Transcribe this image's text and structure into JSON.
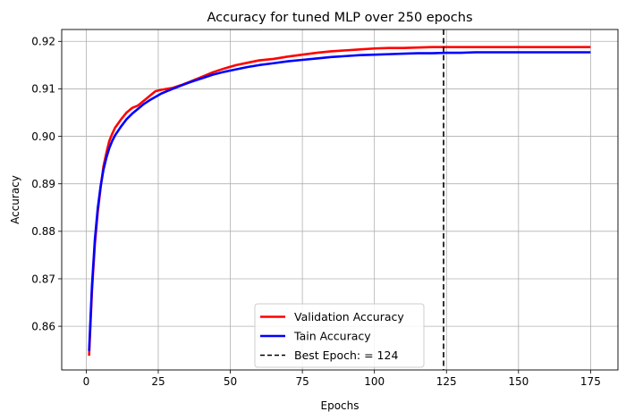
{
  "chart_data": {
    "type": "line",
    "title": "Accuracy for tuned MLP over 250 epochs",
    "xlabel": "Epochs",
    "ylabel": "Accuracy",
    "xlim": [
      -8.5,
      184.5
    ],
    "ylim": [
      0.8508,
      0.9225
    ],
    "xticks": [
      0,
      25,
      50,
      75,
      100,
      125,
      150,
      175
    ],
    "yticks": [
      0.86,
      0.87,
      0.88,
      0.89,
      0.9,
      0.91,
      0.92
    ],
    "ytick_labels": [
      "0.86",
      "0.87",
      "0.88",
      "0.89",
      "0.90",
      "0.91",
      "0.92"
    ],
    "grid": true,
    "legend_position": "lower-center",
    "series": [
      {
        "name": "Validation Accuracy",
        "color": "#ff0000",
        "x": [
          1,
          2,
          3,
          4,
          5,
          6,
          7,
          8,
          9,
          10,
          12,
          14,
          16,
          18,
          20,
          22,
          24,
          26,
          28,
          30,
          33,
          36,
          40,
          44,
          48,
          52,
          56,
          60,
          65,
          70,
          75,
          80,
          85,
          90,
          95,
          100,
          105,
          110,
          115,
          120,
          124,
          130,
          135,
          140,
          150,
          160,
          170,
          175
        ],
        "y": [
          0.8538,
          0.8675,
          0.8772,
          0.884,
          0.8892,
          0.8937,
          0.8965,
          0.899,
          0.9005,
          0.9018,
          0.9035,
          0.905,
          0.906,
          0.9065,
          0.9075,
          0.9085,
          0.9095,
          0.9098,
          0.91,
          0.9102,
          0.9108,
          0.9115,
          0.9125,
          0.9135,
          0.9143,
          0.915,
          0.9155,
          0.916,
          0.9163,
          0.9168,
          0.9172,
          0.9176,
          0.9179,
          0.9181,
          0.9183,
          0.9185,
          0.9186,
          0.9186,
          0.9187,
          0.9188,
          0.9188,
          0.9188,
          0.9188,
          0.9188,
          0.9188,
          0.9188,
          0.9188,
          0.9188
        ]
      },
      {
        "name": "Tain Accuracy",
        "color": "#0000ff",
        "x": [
          1,
          2,
          3,
          4,
          5,
          6,
          7,
          8,
          9,
          10,
          12,
          14,
          16,
          18,
          20,
          22,
          24,
          26,
          28,
          30,
          33,
          36,
          40,
          44,
          48,
          52,
          56,
          60,
          65,
          70,
          75,
          80,
          85,
          90,
          95,
          100,
          105,
          110,
          115,
          120,
          125,
          130,
          135,
          140,
          150,
          160,
          170,
          175
        ],
        "y": [
          0.8548,
          0.8685,
          0.8782,
          0.8848,
          0.8895,
          0.893,
          0.8955,
          0.8975,
          0.899,
          0.9002,
          0.902,
          0.9036,
          0.9048,
          0.9058,
          0.9068,
          0.9076,
          0.9083,
          0.909,
          0.9095,
          0.91,
          0.9107,
          0.9114,
          0.9122,
          0.913,
          0.9136,
          0.9141,
          0.9146,
          0.915,
          0.9154,
          0.9158,
          0.9161,
          0.9164,
          0.9167,
          0.9169,
          0.9171,
          0.9172,
          0.9173,
          0.9174,
          0.9175,
          0.9175,
          0.9176,
          0.9176,
          0.9177,
          0.9177,
          0.9177,
          0.9177,
          0.9177,
          0.9177
        ]
      }
    ],
    "vline": {
      "name": "Best Epoch: = 124",
      "x": 124,
      "color": "#000000",
      "style": "dashed"
    }
  }
}
